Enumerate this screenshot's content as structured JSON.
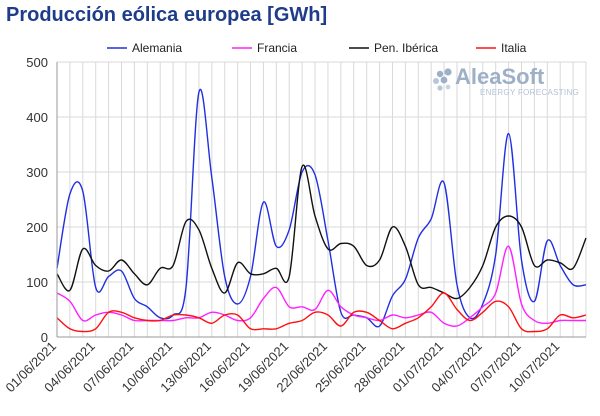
{
  "chart_data": {
    "type": "line",
    "title": "Producción eólica europea [GWh]",
    "xlabel": "",
    "ylabel": "",
    "ylim": [
      0,
      500
    ],
    "yticks": [
      0,
      100,
      200,
      300,
      400,
      500
    ],
    "grid": true,
    "legend_position": "top",
    "x": [
      "01/06/2021",
      "02/06/2021",
      "03/06/2021",
      "04/06/2021",
      "05/06/2021",
      "06/06/2021",
      "07/06/2021",
      "08/06/2021",
      "09/06/2021",
      "10/06/2021",
      "11/06/2021",
      "12/06/2021",
      "13/06/2021",
      "14/06/2021",
      "15/06/2021",
      "16/06/2021",
      "17/06/2021",
      "18/06/2021",
      "19/06/2021",
      "20/06/2021",
      "21/06/2021",
      "22/06/2021",
      "23/06/2021",
      "24/06/2021",
      "25/06/2021",
      "26/06/2021",
      "27/06/2021",
      "28/06/2021",
      "29/06/2021",
      "30/06/2021",
      "01/07/2021",
      "02/07/2021",
      "03/07/2021",
      "04/07/2021",
      "05/07/2021",
      "06/07/2021",
      "07/07/2021",
      "08/07/2021",
      "09/07/2021",
      "10/07/2021",
      "11/07/2021",
      "12/07/2021"
    ],
    "x_tick_labels": [
      "01/06/2021",
      "04/06/2021",
      "07/06/2021",
      "10/06/2021",
      "13/06/2021",
      "16/06/2021",
      "19/06/2021",
      "22/06/2021",
      "25/06/2021",
      "28/06/2021",
      "01/07/2021",
      "04/07/2021",
      "07/07/2021",
      "10/07/2021"
    ],
    "series": [
      {
        "name": "Alemania",
        "color": "#2030e0",
        "values": [
          125,
          260,
          265,
          90,
          110,
          120,
          70,
          55,
          35,
          40,
          90,
          445,
          290,
          110,
          60,
          110,
          245,
          165,
          195,
          300,
          295,
          175,
          45,
          40,
          35,
          20,
          75,
          105,
          180,
          215,
          280,
          95,
          35,
          60,
          150,
          370,
          140,
          65,
          175,
          130,
          95,
          95
        ]
      },
      {
        "name": "Francia",
        "color": "#ff20ff",
        "values": [
          80,
          65,
          30,
          40,
          45,
          40,
          30,
          30,
          30,
          30,
          35,
          35,
          45,
          40,
          30,
          35,
          70,
          90,
          55,
          55,
          50,
          85,
          55,
          40,
          35,
          30,
          40,
          35,
          40,
          45,
          25,
          20,
          35,
          55,
          80,
          165,
          60,
          30,
          25,
          30,
          30,
          30
        ]
      },
      {
        "name": "Pen. Ibérica",
        "color": "#111111",
        "values": [
          115,
          85,
          160,
          130,
          120,
          140,
          115,
          95,
          125,
          130,
          210,
          195,
          125,
          80,
          135,
          115,
          115,
          125,
          110,
          310,
          220,
          160,
          170,
          165,
          130,
          140,
          200,
          165,
          95,
          90,
          80,
          70,
          90,
          130,
          200,
          220,
          200,
          130,
          140,
          135,
          125,
          180
        ]
      },
      {
        "name": "Italia",
        "color": "#ff1010",
        "values": [
          35,
          15,
          10,
          15,
          45,
          45,
          35,
          30,
          30,
          40,
          40,
          35,
          25,
          40,
          40,
          15,
          15,
          15,
          25,
          30,
          45,
          40,
          20,
          45,
          45,
          30,
          15,
          25,
          35,
          55,
          80,
          50,
          30,
          45,
          65,
          55,
          15,
          10,
          15,
          40,
          35,
          40
        ]
      }
    ]
  },
  "watermark": {
    "name": "AleaSoft",
    "tagline": "ENERGY FORECASTING"
  }
}
